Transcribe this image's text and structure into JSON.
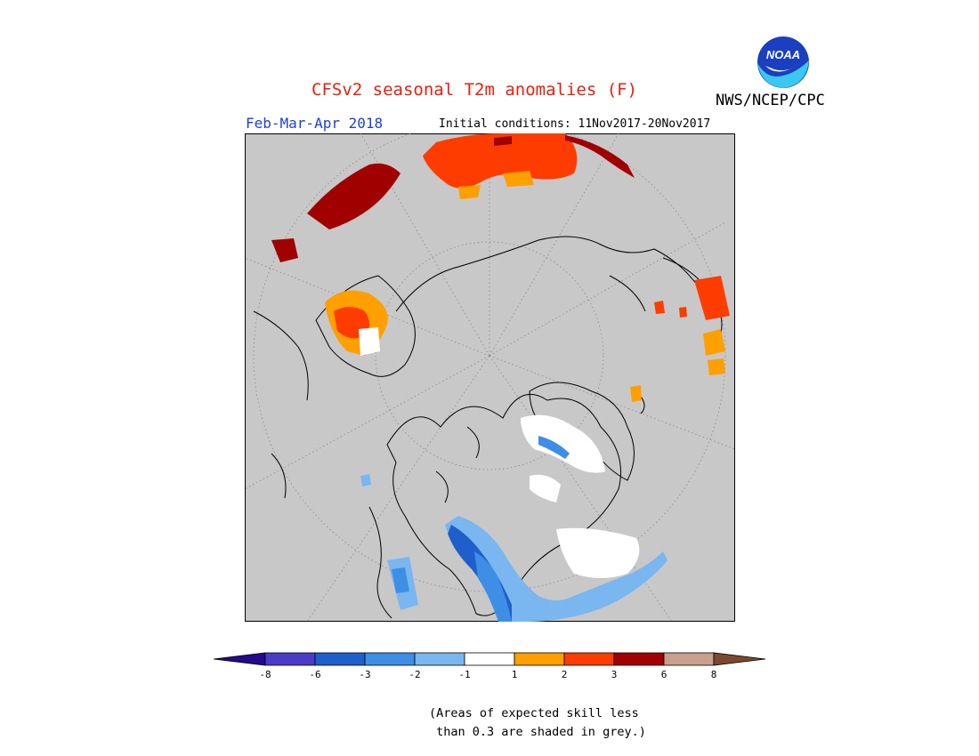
{
  "header": {
    "title": "CFSv2 seasonal T2m anomalies (F)",
    "agency": "NWS/NCEP/CPC",
    "logo_text": "NOAA",
    "period": "Feb-Mar-Apr 2018",
    "initial_conditions": "Initial conditions: 11Nov2017-20Nov2017"
  },
  "colorbar": {
    "colors": [
      "#240a8c",
      "#4a3cc8",
      "#1f5fcc",
      "#3e8ee6",
      "#7ab6f0",
      "#ffffff",
      "#ff9f00",
      "#ff3c00",
      "#a00000",
      "#c8a08c",
      "#7a4a30"
    ],
    "labels": [
      "-8",
      "-6",
      "-3",
      "-2",
      "-1",
      "1",
      "2",
      "3",
      "6",
      "8"
    ]
  },
  "note": {
    "line1": "(Areas of expected skill less",
    "line2": " than 0.3 are shaded in grey.)"
  },
  "colors": {
    "background_grey": "#c8c8c8",
    "title_red": "#e8200c",
    "period_blue": "#1d3fd8"
  }
}
